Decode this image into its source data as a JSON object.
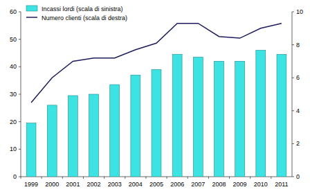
{
  "chart_data": {
    "type": "bar",
    "categories": [
      "1999",
      "2000",
      "2001",
      "2002",
      "2003",
      "2004",
      "2005",
      "2006",
      "2007",
      "2008",
      "2009",
      "2010",
      "2011"
    ],
    "series": [
      {
        "name": "Incassi lordi (scala di sinistra)",
        "type": "bar",
        "color": "#3de3e3",
        "values": [
          19.5,
          26,
          29.5,
          30,
          33.5,
          37,
          39,
          44.5,
          43.5,
          42,
          42,
          46,
          44.5
        ]
      },
      {
        "name": "Numero clienti (scala di destra)",
        "type": "line",
        "color": "#1c1c5e",
        "axis": "y2",
        "values": [
          4.5,
          6.0,
          7.0,
          7.2,
          7.2,
          7.7,
          8.1,
          9.3,
          9.3,
          8.5,
          8.4,
          9.0,
          9.3
        ]
      }
    ],
    "ylim": [
      0,
      60
    ],
    "yticks": [
      0,
      10,
      20,
      30,
      40,
      50,
      60
    ],
    "y2lim": [
      0,
      10
    ],
    "y2ticks": [
      0,
      2,
      4,
      6,
      8,
      10
    ],
    "grid": false,
    "legend": "top-left"
  }
}
